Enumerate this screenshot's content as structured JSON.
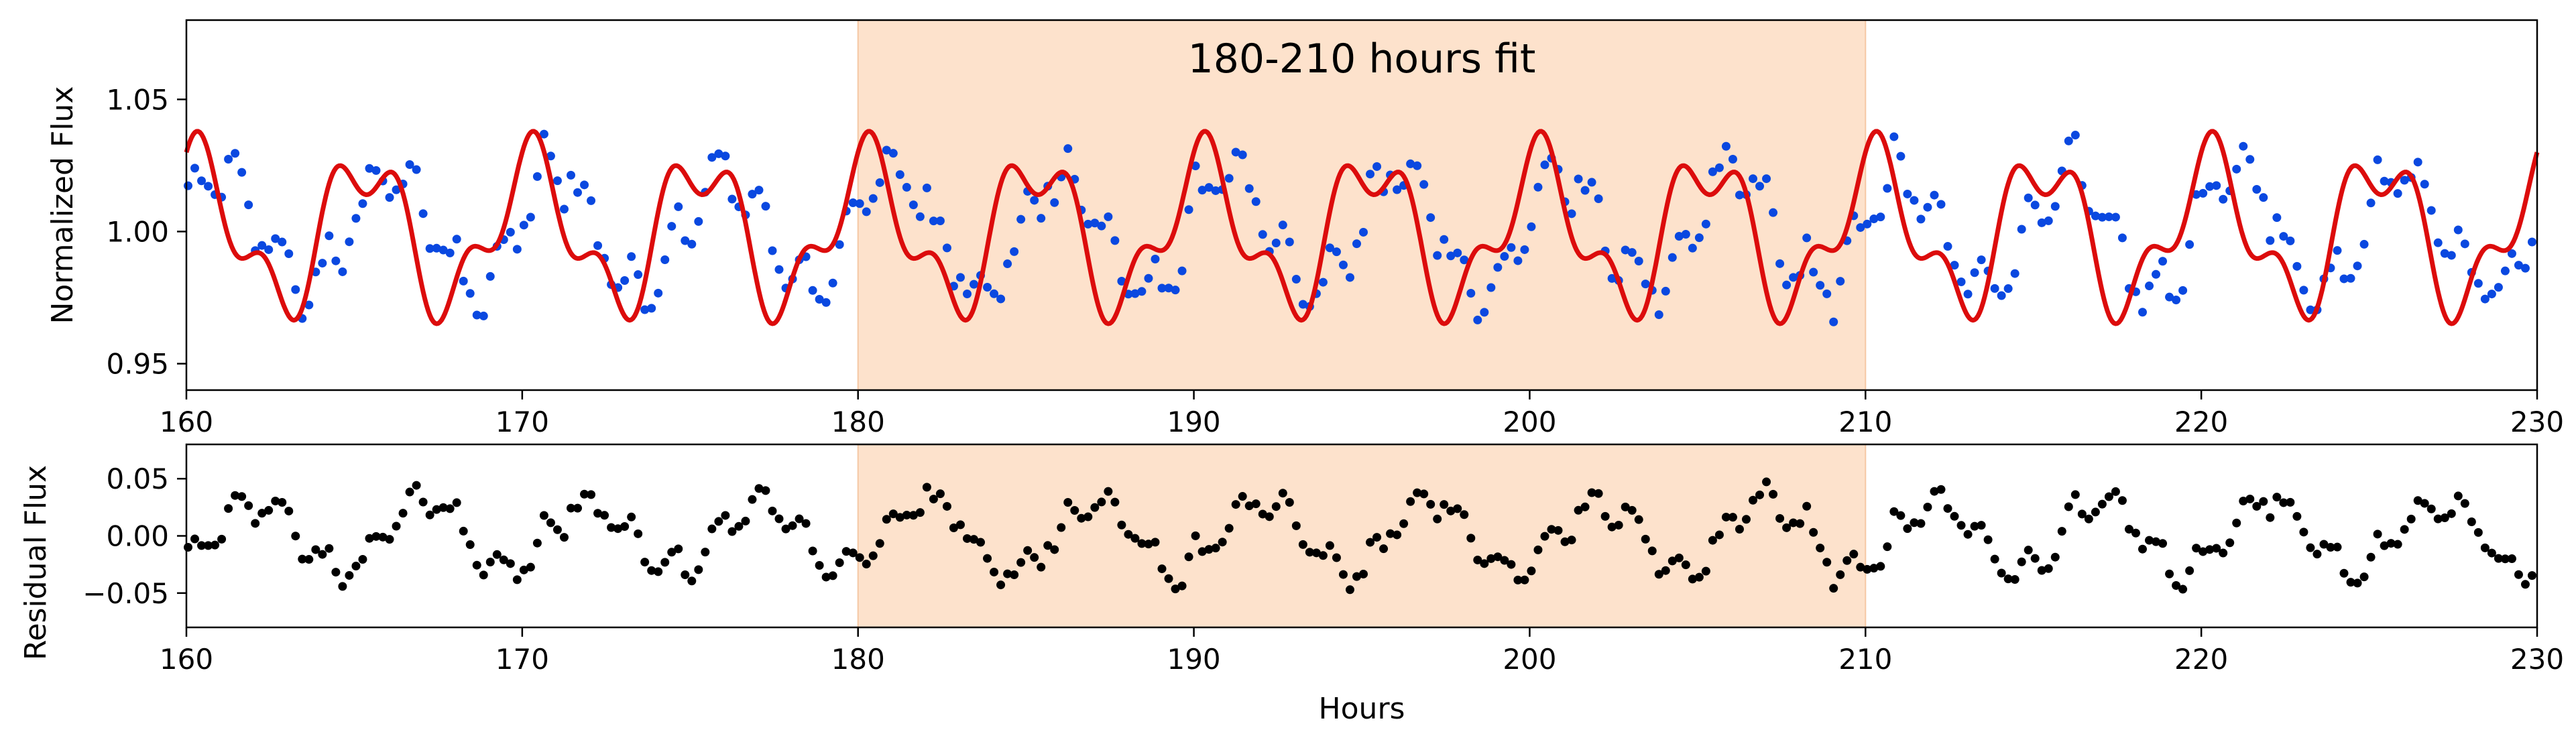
{
  "chart_data": [
    {
      "type": "scatter",
      "panel": "top",
      "title": "180-210 hours fit",
      "xlabel": "",
      "ylabel": "Normalized Flux",
      "xlim": [
        160,
        230
      ],
      "ylim": [
        0.94,
        1.08
      ],
      "xticks": [
        "160",
        "170",
        "180",
        "190",
        "200",
        "210",
        "220",
        "230"
      ],
      "yticks": [
        "0.95",
        "1.00",
        "1.05"
      ],
      "highlight_span": [
        180,
        210
      ],
      "grid": false,
      "legend": "none",
      "series": [
        {
          "kind": "scatter",
          "color": "#0a48e0",
          "generator": "flux = 1 + residual + 0.012*sin(2*pi*x/5.0 + 0.3); residual = 0.03*sin(2*pi*x/5.0 - 1.0) + noise",
          "point_interval_hours": 0.2,
          "amplitude": 0.035
        },
        {
          "kind": "line",
          "color": "#dc0c0c",
          "generator": "model = 1 + 0.026*sin(2*pi*x/5.0 + 1.2) + 0.012*sin(2*pi*x/2.0 + 0.5)",
          "peaks_near": [
            160,
            164.8,
            170,
            175,
            179.9,
            184.9,
            189.9,
            195,
            199.9,
            204.9,
            209.9,
            214.9,
            219.9,
            224.9,
            229.9
          ],
          "range": [
            0.965,
            1.042
          ]
        }
      ]
    },
    {
      "type": "scatter",
      "panel": "bottom",
      "title": "",
      "xlabel": "Hours",
      "ylabel": "Residual Flux",
      "xlim": [
        160,
        230
      ],
      "ylim": [
        -0.08,
        0.08
      ],
      "xticks": [
        "160",
        "170",
        "180",
        "190",
        "200",
        "210",
        "220",
        "230"
      ],
      "yticks": [
        "0.05",
        "0.00",
        "−0.05"
      ],
      "highlight_span": [
        180,
        210
      ],
      "grid": false,
      "legend": "none",
      "series": [
        {
          "kind": "scatter",
          "color": "#000000",
          "point_interval_hours": 0.2,
          "amplitude": 0.05,
          "dominant_period_hours": 5.0
        }
      ]
    }
  ],
  "colors": {
    "highlight": "#fde2cc",
    "highlight_edge": "#f5c8a4",
    "flux_points": "#0a48e0",
    "model_line": "#dc0c0c",
    "residual_points": "#000000"
  }
}
